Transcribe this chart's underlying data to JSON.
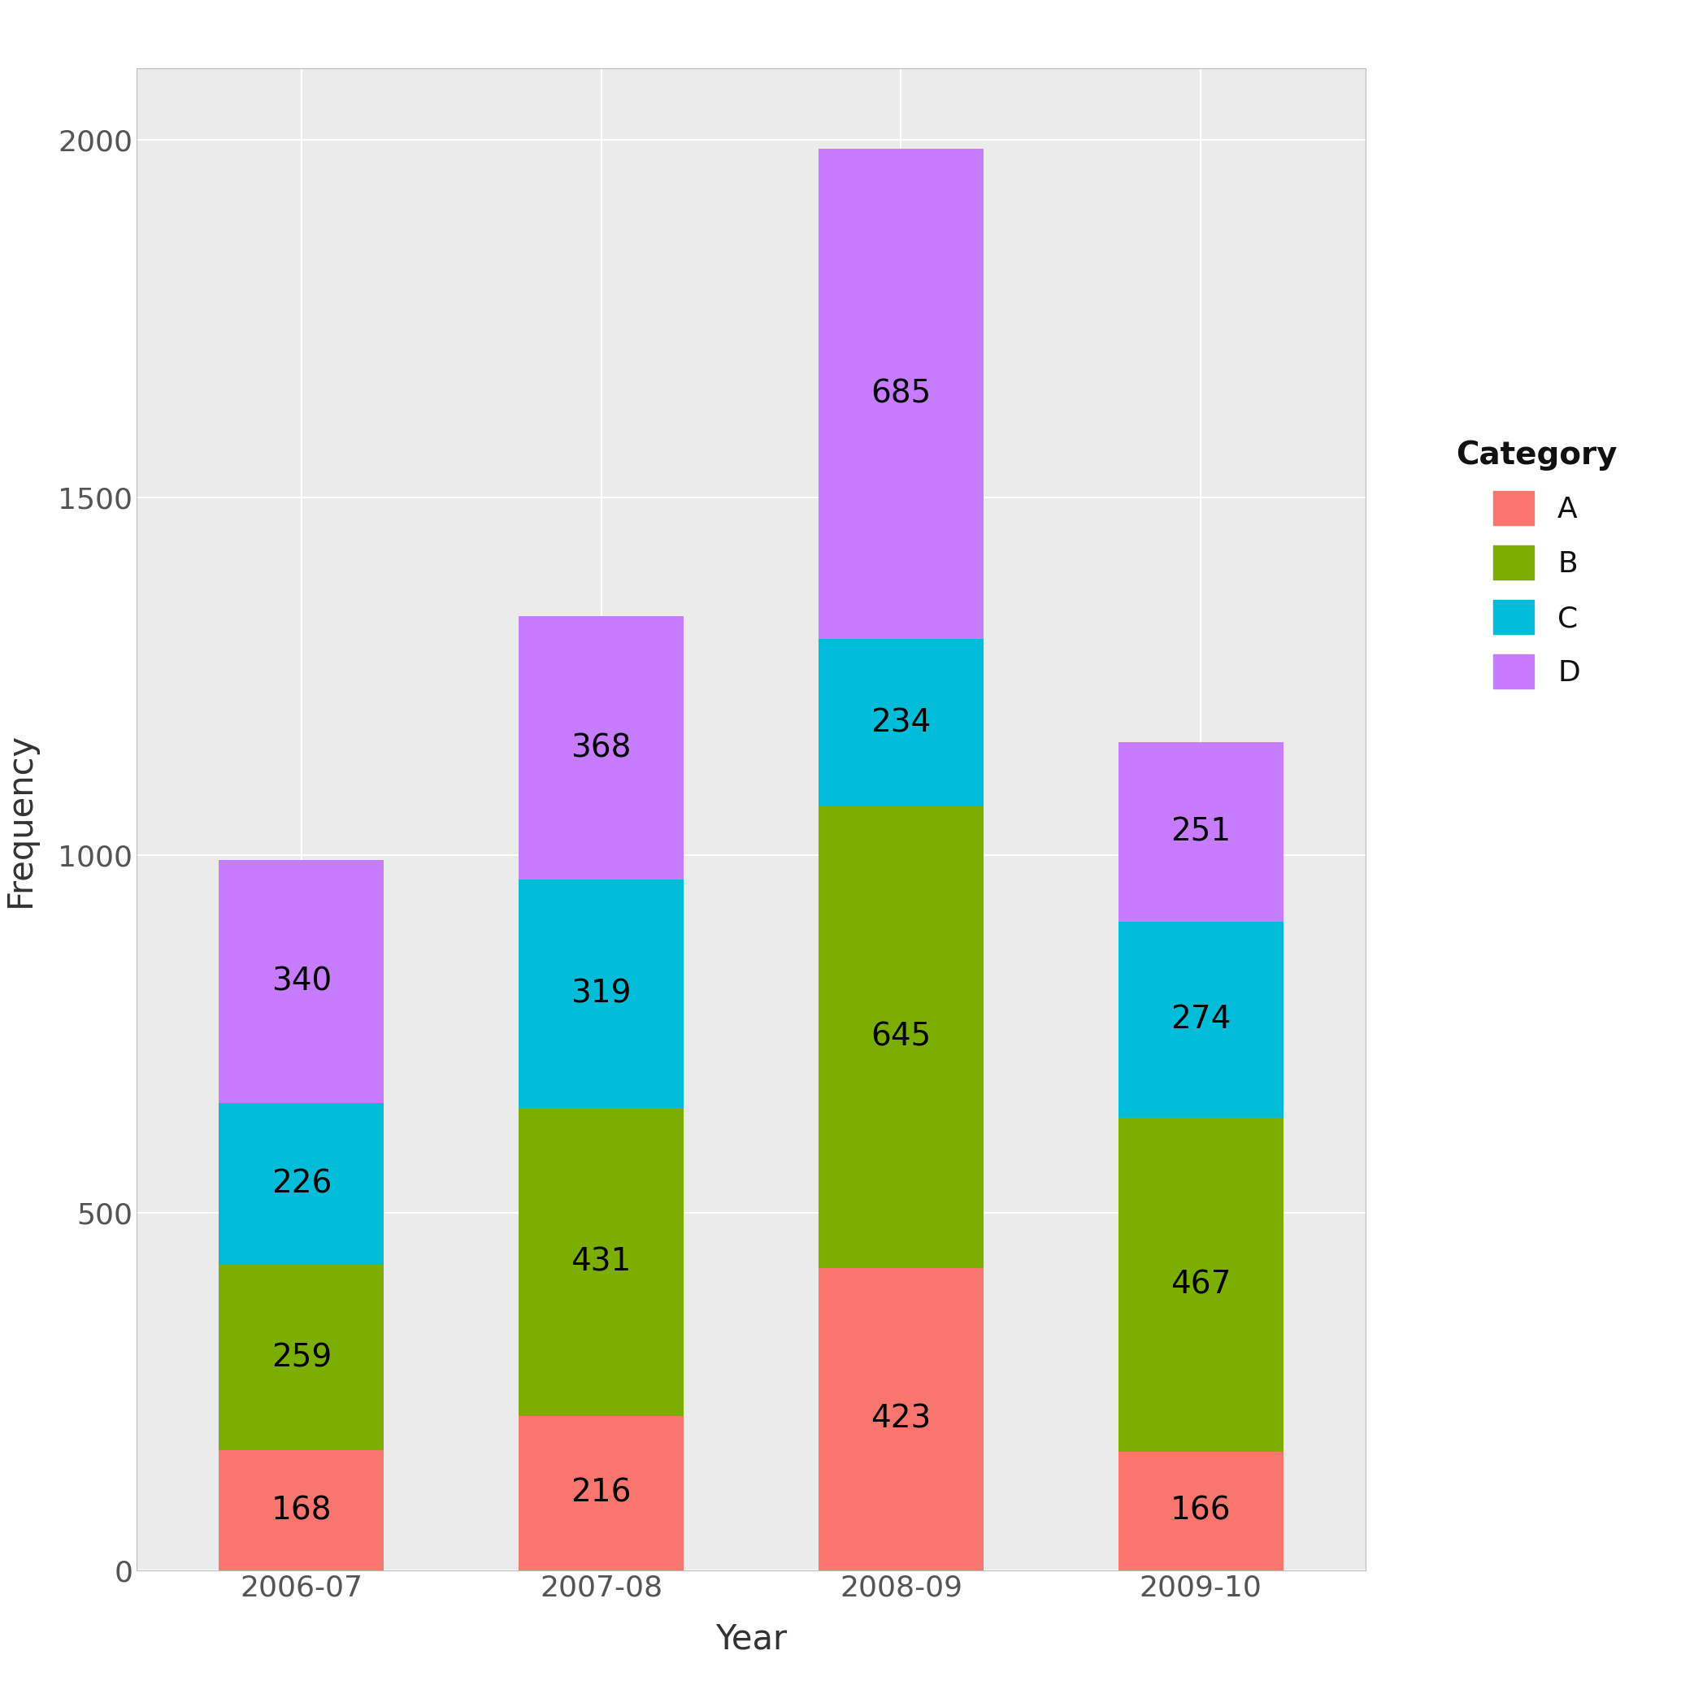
{
  "years": [
    "2006-07",
    "2007-08",
    "2008-09",
    "2009-10"
  ],
  "categories": [
    "A",
    "B",
    "C",
    "D"
  ],
  "values": {
    "A": [
      168,
      216,
      423,
      166
    ],
    "B": [
      259,
      431,
      645,
      467
    ],
    "C": [
      226,
      319,
      234,
      274
    ],
    "D": [
      340,
      368,
      685,
      251
    ]
  },
  "colors": {
    "A": "#F8766D",
    "B": "#7CAE00",
    "C": "#00BCD8",
    "D": "#C77CFF"
  },
  "xlabel": "Year",
  "ylabel": "Frequency",
  "ylim": [
    0,
    2100
  ],
  "yticks": [
    0,
    500,
    1000,
    1500,
    2000
  ],
  "fig_background": "#FFFFFF",
  "panel_background": "#EBEBEB",
  "grid_color": "#FFFFFF",
  "legend_title": "Category",
  "bar_width": 0.55,
  "label_fontsize": 28,
  "axis_label_fontsize": 30,
  "tick_fontsize": 26,
  "legend_fontsize": 26,
  "legend_title_fontsize": 28
}
